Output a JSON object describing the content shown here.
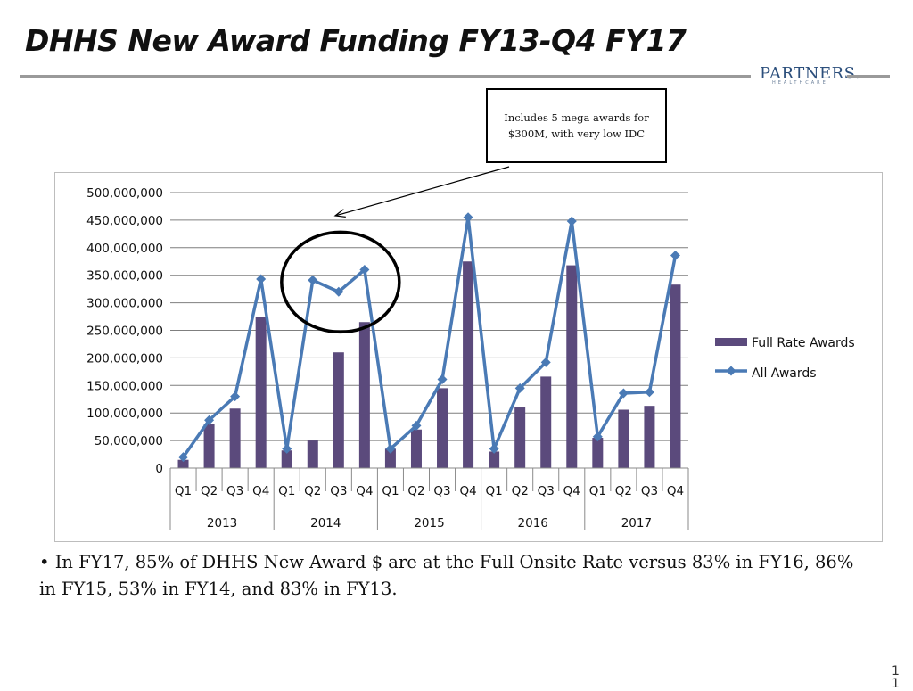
{
  "slide": {
    "title": "DHHS New Award Funding FY13-Q4 FY17",
    "logo_text": "PARTNERS.",
    "logo_subtext": "HEALTHCARE",
    "callout_text": "Includes 5 mega awards for $300M, with very low IDC",
    "bullet_text": "• In FY17, 85% of DHHS New Award $ are at the Full Onsite Rate versus 83% in FY16, 86% in FY15, 53% in FY14, and 83% in FY13.",
    "page_number": "11"
  },
  "colors": {
    "bar": "#5b4a7c",
    "line": "#4a7ab5",
    "grid": "#7f7f7f",
    "rule": "#9a9a9a",
    "logo": "#2c4f7c"
  },
  "chart_data": {
    "type": "bar",
    "title": "",
    "xlabel": "",
    "ylabel": "",
    "ylim": [
      0,
      500000000
    ],
    "y_ticks": [
      0,
      50000000,
      100000000,
      150000000,
      200000000,
      250000000,
      300000000,
      350000000,
      400000000,
      450000000,
      500000000
    ],
    "y_tick_labels": [
      "0",
      "50,000,000",
      "100,000,000",
      "150,000,000",
      "200,000,000",
      "250,000,000",
      "300,000,000",
      "350,000,000",
      "400,000,000",
      "450,000,000",
      "500,000,000"
    ],
    "grid": true,
    "legend_position": "right",
    "categories": [
      "Q1",
      "Q2",
      "Q3",
      "Q4",
      "Q1",
      "Q2",
      "Q3",
      "Q4",
      "Q1",
      "Q2",
      "Q3",
      "Q4",
      "Q1",
      "Q2",
      "Q3",
      "Q4",
      "Q1",
      "Q2",
      "Q3",
      "Q4"
    ],
    "groups": [
      {
        "label": "2013",
        "count": 4
      },
      {
        "label": "2014",
        "count": 4
      },
      {
        "label": "2015",
        "count": 4
      },
      {
        "label": "2016",
        "count": 4
      },
      {
        "label": "2017",
        "count": 4
      }
    ],
    "series": [
      {
        "name": "Full Rate Awards",
        "type": "bar",
        "values": [
          15000000,
          80000000,
          108000000,
          275000000,
          32000000,
          50000000,
          210000000,
          265000000,
          35000000,
          70000000,
          145000000,
          375000000,
          30000000,
          110000000,
          166000000,
          368000000,
          55000000,
          106000000,
          113000000,
          333000000
        ]
      },
      {
        "name": "All Awards",
        "type": "line",
        "values": [
          20000000,
          87000000,
          130000000,
          343000000,
          35000000,
          341000000,
          320000000,
          360000000,
          35000000,
          77000000,
          161000000,
          455000000,
          35000000,
          145000000,
          192000000,
          448000000,
          57000000,
          136000000,
          138000000,
          386000000
        ]
      }
    ]
  }
}
